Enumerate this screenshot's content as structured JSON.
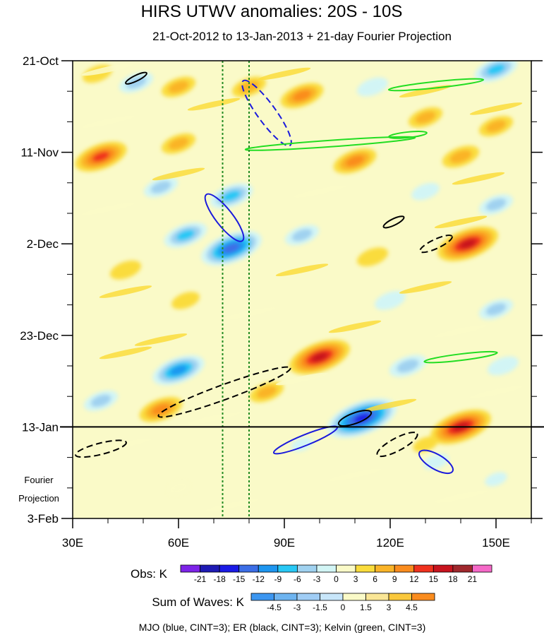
{
  "chart_data": {
    "type": "heatmap",
    "title": "HIRS UTWV anomalies: 20S - 10S",
    "subtitle": "21-Oct-2012 to 13-Jan-2013 + 21-day Fourier Projection",
    "x_axis": {
      "range": [
        30,
        160
      ],
      "ticks": [
        {
          "value": 30,
          "label": "30E"
        },
        {
          "value": 60,
          "label": "60E"
        },
        {
          "value": 90,
          "label": "90E"
        },
        {
          "value": 120,
          "label": "120E"
        },
        {
          "value": 150,
          "label": "150E"
        }
      ]
    },
    "y_axis": {
      "range_days": [
        0,
        105
      ],
      "ticks": [
        {
          "day": 0,
          "label": "21-Oct"
        },
        {
          "day": 21,
          "label": "11-Nov"
        },
        {
          "day": 42,
          "label": "2-Dec"
        },
        {
          "day": 63,
          "label": "23-Dec"
        },
        {
          "day": 84,
          "label": "13-Jan"
        },
        {
          "day": 105,
          "label": "3-Feb"
        }
      ],
      "projection_label_line1": "Fourier",
      "projection_label_line2": "Projection"
    },
    "projection_start_day": 84,
    "reference_longitudes": [
      72.5,
      80
    ],
    "anomaly_blobs": [
      {
        "lon": 37,
        "day": 3,
        "value": 4.5
      },
      {
        "lon": 48,
        "day": 5,
        "value": -6
      },
      {
        "lon": 60,
        "day": 6,
        "value": 6
      },
      {
        "lon": 80,
        "day": 6,
        "value": 6
      },
      {
        "lon": 95,
        "day": 8,
        "value": 9
      },
      {
        "lon": 115,
        "day": 6,
        "value": -5
      },
      {
        "lon": 150,
        "day": 2,
        "value": -9
      },
      {
        "lon": 130,
        "day": 13,
        "value": 6
      },
      {
        "lon": 150,
        "day": 15,
        "value": 6
      },
      {
        "lon": 38,
        "day": 22,
        "value": 12
      },
      {
        "lon": 60,
        "day": 19,
        "value": 6
      },
      {
        "lon": 110,
        "day": 23,
        "value": 9
      },
      {
        "lon": 140,
        "day": 22,
        "value": 7
      },
      {
        "lon": 75,
        "day": 31,
        "value": -9
      },
      {
        "lon": 55,
        "day": 29,
        "value": -6
      },
      {
        "lon": 130,
        "day": 30,
        "value": -4
      },
      {
        "lon": 150,
        "day": 33,
        "value": -6
      },
      {
        "lon": 75,
        "day": 43,
        "value": -15
      },
      {
        "lon": 62,
        "day": 40,
        "value": -9
      },
      {
        "lon": 95,
        "day": 40,
        "value": -6
      },
      {
        "lon": 115,
        "day": 45,
        "value": 5
      },
      {
        "lon": 142,
        "day": 42,
        "value": 15
      },
      {
        "lon": 45,
        "day": 48,
        "value": 5
      },
      {
        "lon": 150,
        "day": 57,
        "value": -6
      },
      {
        "lon": 120,
        "day": 55,
        "value": -5
      },
      {
        "lon": 62,
        "day": 55,
        "value": 4
      },
      {
        "lon": 100,
        "day": 68,
        "value": 15
      },
      {
        "lon": 60,
        "day": 71,
        "value": -12
      },
      {
        "lon": 125,
        "day": 70,
        "value": -7
      },
      {
        "lon": 38,
        "day": 78,
        "value": -6
      },
      {
        "lon": 55,
        "day": 80,
        "value": 9
      },
      {
        "lon": 85,
        "day": 76,
        "value": 6
      },
      {
        "lon": 112,
        "day": 82,
        "value": -18
      },
      {
        "lon": 140,
        "day": 84,
        "value": 15
      },
      {
        "lon": 152,
        "day": 70,
        "value": -5
      },
      {
        "lon": 133,
        "day": 92,
        "value": -3
      },
      {
        "lon": 95,
        "day": 88,
        "value": -2
      },
      {
        "lon": 130,
        "day": 88,
        "value": 3
      },
      {
        "lon": 60,
        "day": 98,
        "value": 1.5
      },
      {
        "lon": 150,
        "day": 96,
        "value": -2
      }
    ],
    "wave_contours": [
      {
        "type": "ER",
        "color": "#000000",
        "dashed": false,
        "lon": 48,
        "day": 4,
        "rx": 4,
        "ry": 29,
        "angle": 64
      },
      {
        "type": "MJO",
        "color": "#1a1adc",
        "dashed": true,
        "lon": 85,
        "day": 12,
        "rx": 22,
        "ry": 109,
        "angle": -36
      },
      {
        "type": "Kelvin",
        "color": "#22dd22",
        "dashed": false,
        "lon": 133,
        "day": 5.5,
        "rx": 5,
        "ry": 131,
        "angle": 84
      },
      {
        "type": "Kelvin",
        "color": "#22dd22",
        "dashed": false,
        "lon": 103,
        "day": 19,
        "rx": 5,
        "ry": 237,
        "angle": 86
      },
      {
        "type": "Kelvin",
        "color": "#22dd22",
        "dashed": false,
        "lon": 125,
        "day": 17,
        "rx": 4,
        "ry": 50,
        "angle": 84
      },
      {
        "type": "MJO",
        "color": "#1a1adc",
        "dashed": false,
        "lon": 73,
        "day": 36,
        "rx": 20,
        "ry": 79,
        "angle": -38
      },
      {
        "type": "ER",
        "color": "#000000",
        "dashed": false,
        "lon": 121,
        "day": 37,
        "rx": 5,
        "ry": 28,
        "angle": 64
      },
      {
        "type": "ER",
        "color": "#000000",
        "dashed": true,
        "lon": 133,
        "day": 42,
        "rx": 9,
        "ry": 46,
        "angle": 65
      },
      {
        "type": "ER",
        "color": "#000000",
        "dashed": true,
        "lon": 73,
        "day": 76,
        "rx": 17,
        "ry": 195,
        "angle": 70
      },
      {
        "type": "Kelvin",
        "color": "#22dd22",
        "dashed": false,
        "lon": 140,
        "day": 68,
        "rx": 5,
        "ry": 100,
        "angle": 83
      },
      {
        "type": "ER",
        "color": "#000000",
        "dashed": true,
        "lon": 38,
        "day": 89,
        "rx": 12,
        "ry": 70,
        "angle": 76
      },
      {
        "type": "ER",
        "color": "#000000",
        "dashed": false,
        "lon": 110,
        "day": 82,
        "rx": 11,
        "ry": 45,
        "angle": 70
      },
      {
        "type": "MJO",
        "color": "#1a1adc",
        "dashed": false,
        "lon": 96,
        "day": 87,
        "rx": 11,
        "ry": 93,
        "angle": 68
      },
      {
        "type": "ER",
        "color": "#000000",
        "dashed": true,
        "lon": 122,
        "day": 88,
        "rx": 14,
        "ry": 60,
        "angle": 62
      },
      {
        "type": "MJO",
        "color": "#1a1adc",
        "dashed": false,
        "lon": 133,
        "day": 92,
        "rx": 17,
        "ry": 50,
        "angle": -60
      }
    ],
    "obs_colorbar": {
      "title": "Obs: K",
      "colors": [
        "#7d23e8",
        "#1e1ab4",
        "#1a1ae6",
        "#3c6ee6",
        "#1e96f0",
        "#28c8f5",
        "#a0d2f0",
        "#d2f5f5",
        "#fafac8",
        "#fadc3c",
        "#fab428",
        "#fa8c1e",
        "#f0321e",
        "#c8141e",
        "#a0282d",
        "#f569c8"
      ],
      "labels": [
        "-21",
        "-18",
        "-15",
        "-12",
        "-9",
        "-6",
        "-3",
        "0",
        "3",
        "6",
        "9",
        "12",
        "15",
        "18",
        "21"
      ]
    },
    "waves_colorbar": {
      "title": "Sum of Waves: K",
      "colors": [
        "#3c96f0",
        "#6eb4f0",
        "#a0cdf5",
        "#c8e6fa",
        "#fafac8",
        "#fae696",
        "#fac83c",
        "#fa8c1e"
      ],
      "labels": [
        "-4.5",
        "-3",
        "-1.5",
        "0",
        "1.5",
        "3",
        "4.5"
      ]
    },
    "caption": "MJO (blue, CINT=3); ER (black, CINT=3); Kelvin (green, CINT=3)"
  }
}
